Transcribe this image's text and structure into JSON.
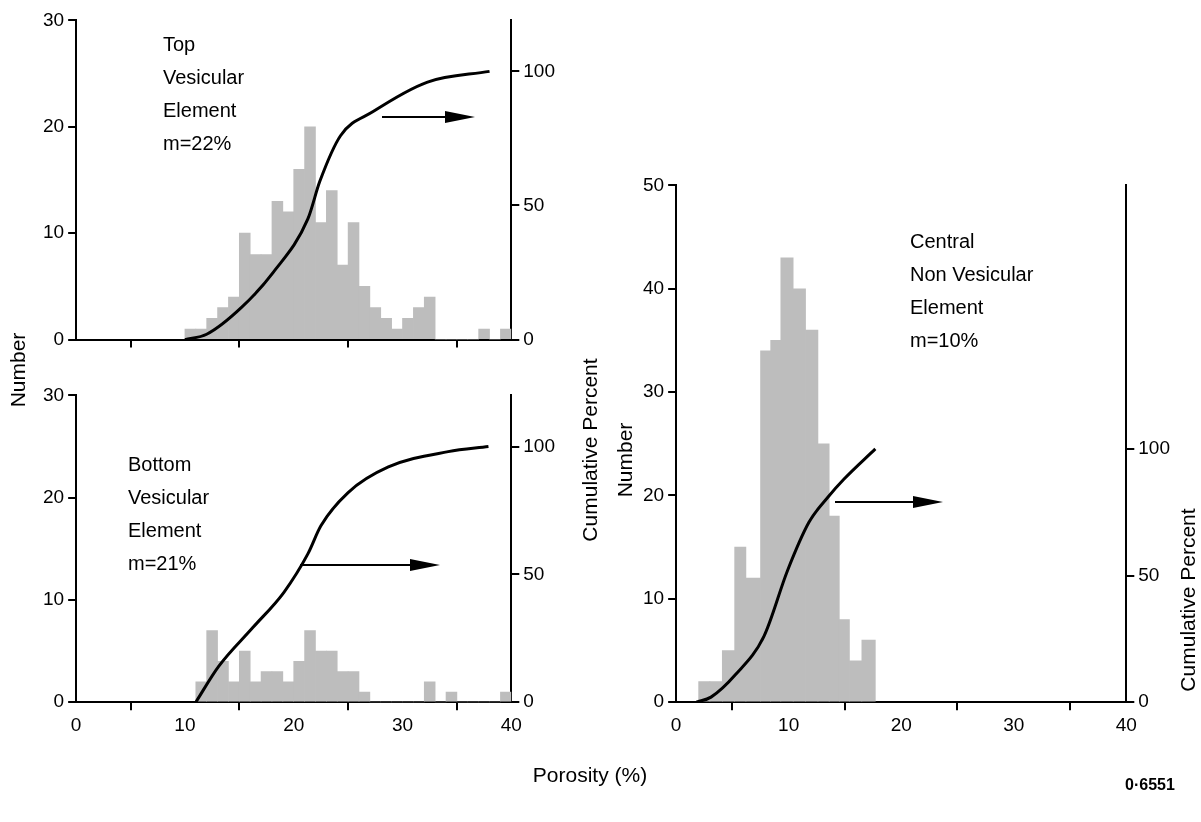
{
  "chart_data": [
    {
      "type": "histogram",
      "bins": [
        10,
        11,
        12,
        13,
        14,
        15,
        16,
        17,
        18,
        19,
        20,
        21,
        22,
        23,
        24,
        25,
        26,
        27,
        28,
        29,
        30,
        31,
        32,
        33,
        34,
        35,
        36,
        37,
        38,
        39,
        40
      ],
      "values": [
        1,
        1,
        2,
        3,
        4,
        10,
        8,
        8,
        13,
        12,
        16,
        20,
        11,
        14,
        7,
        11,
        5,
        3,
        2,
        1,
        2,
        3,
        4,
        0,
        0,
        0,
        0,
        1,
        0,
        1
      ],
      "color": "#bdbdbd",
      "ylabel": "Number",
      "y2label": "Cumulative Percent",
      "annotations": [
        "Top\nVesicular\nElement\nm=22%"
      ],
      "xlim": [
        0,
        40
      ],
      "xticks": [
        0,
        10,
        20,
        30,
        40
      ],
      "ylim": [
        0,
        30
      ],
      "yticks": [
        0,
        10,
        20,
        30
      ],
      "y2lim": [
        0,
        119
      ],
      "y2ticks": [
        0,
        50,
        100
      ],
      "tick_labels": "y",
      "grid": false,
      "legend": false,
      "marker": "none",
      "series": [
        {
          "type": "line",
          "axis": "y2",
          "color": "#000000",
          "x": [
            10,
            12,
            15.2,
            18.1,
            21.3,
            22.4,
            24.3,
            27.3,
            32.3,
            38
          ],
          "values": [
            0,
            2,
            12,
            25,
            45,
            59,
            76,
            85,
            96,
            100
          ]
        }
      ]
    },
    {
      "type": "histogram",
      "bins": [
        11,
        12,
        13,
        14,
        15,
        16,
        17,
        18,
        19,
        20,
        21,
        22,
        23,
        24,
        25,
        26,
        27,
        28,
        29,
        30,
        31,
        32,
        33,
        34,
        35,
        36,
        37,
        38,
        39,
        40
      ],
      "values": [
        2,
        7,
        4,
        2,
        5,
        2,
        3,
        3,
        2,
        4,
        7,
        5,
        5,
        3,
        3,
        1,
        0,
        0,
        0,
        0,
        0,
        2,
        0,
        1,
        0,
        0,
        0,
        0,
        1
      ],
      "color": "#bdbdbd",
      "xlabel": "Porosity (%)",
      "annotations": [
        "Bottom\nVesicular\nElement\nm=21%"
      ],
      "xlim": [
        0,
        40
      ],
      "xticks": [
        0,
        10,
        20,
        30,
        40
      ],
      "ylim": [
        0,
        30
      ],
      "yticks": [
        0,
        10,
        20,
        30
      ],
      "y2lim": [
        0,
        120
      ],
      "y2ticks": [
        0,
        50,
        100
      ],
      "grid": false,
      "legend": false,
      "marker": "none",
      "series": [
        {
          "type": "line",
          "axis": "y2",
          "color": "#000000",
          "x": [
            11,
            13.1,
            16.2,
            19.1,
            21.3,
            22.5,
            25,
            28.7,
            34.2,
            37.9
          ],
          "values": [
            0,
            14,
            29,
            43,
            58,
            69,
            82,
            92,
            98,
            100
          ]
        }
      ]
    },
    {
      "type": "histogram",
      "bins": [
        2.0,
        3.0,
        4.1,
        5.2,
        6.2,
        7.5,
        8.4,
        9.3,
        10.4,
        11.5,
        12.6,
        13.6,
        14.5,
        15.4,
        16.5,
        17.7
      ],
      "values": [
        2,
        2,
        5,
        15,
        12,
        34,
        35,
        43,
        40,
        36,
        25,
        18,
        8,
        4,
        6
      ],
      "color": "#bdbdbd",
      "ylabel": "Number",
      "y2label": "Cumulative Percent",
      "annotations": [
        "Central\nNon Vesicular\nElement\nm=10%",
        "0·6551"
      ],
      "xlim": [
        0,
        40
      ],
      "xticks": [
        0,
        10,
        20,
        30,
        40
      ],
      "ylim": [
        0,
        50
      ],
      "yticks": [
        0,
        10,
        20,
        30,
        40,
        50
      ],
      "y2lim": [
        0,
        204
      ],
      "y2ticks": [
        0,
        50,
        100
      ],
      "grid": false,
      "legend": false,
      "marker": "none",
      "series": [
        {
          "type": "line",
          "axis": "y2",
          "color": "#000000",
          "x": [
            1.8,
            3.1,
            5.3,
            7.8,
            9.9,
            11.8,
            13.5,
            14.9,
            17.7
          ],
          "values": [
            0,
            2,
            11,
            26,
            52,
            71,
            81,
            88,
            100
          ]
        }
      ]
    }
  ]
}
